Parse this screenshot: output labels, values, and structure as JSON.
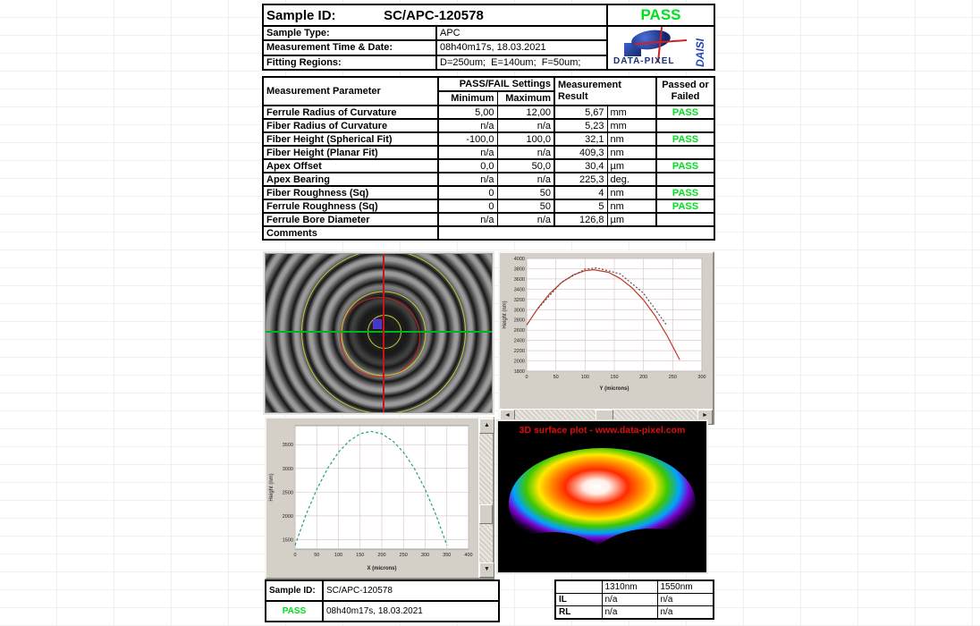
{
  "header": {
    "sample_id_label": "Sample ID:",
    "sample_id_value": "SC/APC-120578",
    "pass_badge": "PASS",
    "rows": [
      {
        "label": "Sample Type:",
        "value": "APC"
      },
      {
        "label": "Measurement Time & Date:",
        "value": "08h40m17s, 18.03.2021"
      },
      {
        "label": "Fitting Regions:",
        "value": "D=250um;  E=140um;  F=50um;"
      }
    ],
    "logo": {
      "brand": "DATA-PIXEL",
      "product": "DAISI"
    }
  },
  "measurement_table": {
    "headers": {
      "parameter": "Measurement Parameter",
      "passfail": "PASS/FAIL Settings",
      "minimum": "Minimum",
      "maximum": "Maximum",
      "result": "Measurement Result",
      "passed": "Passed or Failed"
    },
    "rows": [
      {
        "param": "Ferrule Radius of Curvature",
        "min": "5,00",
        "max": "12,00",
        "result": "5,67",
        "unit": "mm",
        "status": "PASS"
      },
      {
        "param": "Fiber Radius of Curvature",
        "min": "n/a",
        "max": "n/a",
        "result": "5,23",
        "unit": "mm",
        "status": ""
      },
      {
        "param": "Fiber Height (Spherical Fit)",
        "min": "-100,0",
        "max": "100,0",
        "result": "32,1",
        "unit": "nm",
        "status": "PASS"
      },
      {
        "param": "Fiber Height (Planar Fit)",
        "min": "n/a",
        "max": "n/a",
        "result": "409,3",
        "unit": "nm",
        "status": ""
      },
      {
        "param": "Apex Offset",
        "min": "0,0",
        "max": "50,0",
        "result": "30,4",
        "unit": "µm",
        "status": "PASS"
      },
      {
        "param": "Apex Bearing",
        "min": "n/a",
        "max": "n/a",
        "result": "225,3",
        "unit": "deg.",
        "status": ""
      },
      {
        "param": "Fiber Roughness (Sq)",
        "min": "0",
        "max": "50",
        "result": "4",
        "unit": "nm",
        "status": "PASS"
      },
      {
        "param": "Ferrule Roughness (Sq)",
        "min": "0",
        "max": "50",
        "result": "5",
        "unit": "nm",
        "status": "PASS"
      },
      {
        "param": "Ferrule Bore Diameter",
        "min": "n/a",
        "max": "n/a",
        "result": "126,8",
        "unit": "µm",
        "status": ""
      }
    ],
    "comments_label": "Comments"
  },
  "footer": {
    "sample_id_label": "Sample ID:",
    "sample_id_value": "SC/APC-120578",
    "status": "PASS",
    "datetime": "08h40m17s, 18.03.2021"
  },
  "il_rl_table": {
    "col_headers": [
      "1310nm",
      "1550nm"
    ],
    "rows": [
      {
        "label": "IL",
        "v1310": "n/a",
        "v1550": "n/a"
      },
      {
        "label": "RL",
        "v1310": "n/a",
        "v1550": "n/a"
      }
    ]
  },
  "icons": {
    "scroll_left": "◄",
    "scroll_right": "►",
    "scroll_up": "▲",
    "scroll_down": "▼"
  },
  "colors": {
    "pass_green": "#00e01c",
    "fit_red_curve": "#c0392b",
    "fit_green_curve": "#1fa184",
    "crosshair_green": "#00b41e",
    "crosshair_red": "#cc1313",
    "ring_yellow": "#c8c83a",
    "surface_title_red": "#cc1111"
  },
  "chart_data": [
    {
      "id": "y_profile",
      "type": "line",
      "title": "",
      "xlabel": "Y (microns)",
      "ylabel": "Height (nm)",
      "xlim": [
        0,
        300
      ],
      "ylim": [
        1800,
        4000
      ],
      "xtick_step": 50,
      "ytick_step": 200,
      "grid": true,
      "series": [
        {
          "name": "measured_profile",
          "color": "#c0392b",
          "dash": "",
          "points": [
            [
              0,
              2700
            ],
            [
              20,
              3040
            ],
            [
              40,
              3320
            ],
            [
              60,
              3530
            ],
            [
              80,
              3680
            ],
            [
              100,
              3760
            ],
            [
              115,
              3780
            ],
            [
              140,
              3730
            ],
            [
              160,
              3610
            ],
            [
              180,
              3430
            ],
            [
              200,
              3190
            ],
            [
              220,
              2880
            ],
            [
              240,
              2500
            ],
            [
              262,
              2020
            ]
          ]
        },
        {
          "name": "spherical_fit",
          "color": "#6d4c4c",
          "dash": "2,2",
          "points": [
            [
              20,
              3030
            ],
            [
              60,
              3540
            ],
            [
              100,
              3790
            ],
            [
              120,
              3815
            ],
            [
              160,
              3700
            ],
            [
              200,
              3320
            ],
            [
              240,
              2690
            ]
          ]
        }
      ]
    },
    {
      "id": "x_profile",
      "type": "line",
      "title": "",
      "xlabel": "X (microns)",
      "ylabel": "Height (nm)",
      "xlim": [
        0,
        400
      ],
      "ylim": [
        1300,
        3900
      ],
      "xtick_step": 50,
      "ytick_step": 500,
      "ytick_start": 1500,
      "grid": true,
      "series": [
        {
          "name": "measured_profile",
          "color": "#1fa184",
          "dash": "3,2.5",
          "points": [
            [
              0,
              1380
            ],
            [
              25,
              2020
            ],
            [
              50,
              2560
            ],
            [
              75,
              3000
            ],
            [
              100,
              3340
            ],
            [
              125,
              3580
            ],
            [
              150,
              3730
            ],
            [
              175,
              3780
            ],
            [
              200,
              3730
            ],
            [
              225,
              3580
            ],
            [
              250,
              3340
            ],
            [
              275,
              3000
            ],
            [
              300,
              2560
            ],
            [
              325,
              2020
            ],
            [
              350,
              1380
            ]
          ]
        }
      ]
    },
    {
      "id": "surface_3d",
      "type": "surface",
      "title": "3D surface plot - www.data-pixel.com"
    },
    {
      "id": "interferogram",
      "type": "image",
      "description": "Interferometric fringe pattern with fitting-region circles and center crosshair"
    }
  ]
}
